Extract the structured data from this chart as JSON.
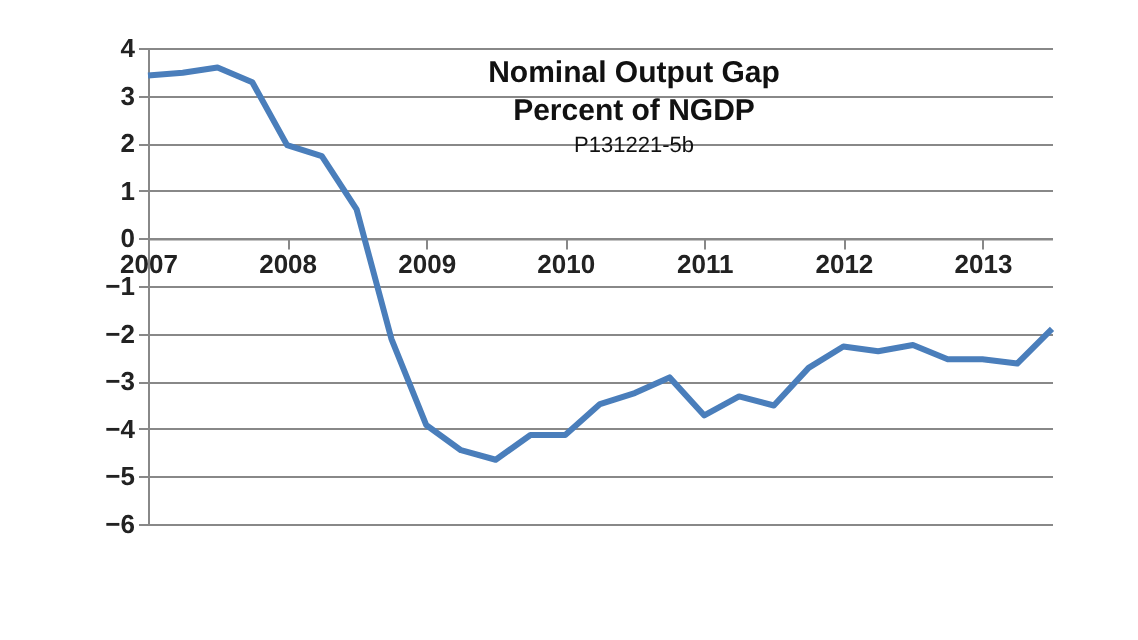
{
  "chart_data": {
    "type": "line",
    "title": "Nominal Output Gap",
    "subtitle": "Percent of NGDP",
    "annotations": [
      "P131221-5b"
    ],
    "categories": [
      "2007",
      null,
      null,
      null,
      "2008",
      null,
      null,
      null,
      "2009",
      null,
      null,
      null,
      "2010",
      null,
      null,
      null,
      "2011",
      null,
      null,
      null,
      "2012",
      null,
      null,
      null,
      "2013",
      null,
      null
    ],
    "series": [
      {
        "color": "#4a7ebb",
        "values": [
          3.42,
          3.48,
          3.59,
          3.28,
          1.96,
          1.73,
          0.61,
          -2.11,
          -3.92,
          -4.45,
          -4.65,
          -4.13,
          -4.13,
          -3.48,
          -3.25,
          -2.92,
          -3.72,
          -3.32,
          -3.51,
          -2.72,
          -2.27,
          -2.37,
          -2.24,
          -2.54,
          -2.54,
          -2.63,
          -1.9
        ]
      }
    ],
    "ylim": [
      -6,
      4
    ],
    "yticks": [
      -6,
      -5,
      -4,
      -3,
      -2,
      -1,
      0,
      1,
      2,
      3,
      4
    ],
    "grid": "y",
    "marker": "none",
    "line_style": "solid"
  }
}
